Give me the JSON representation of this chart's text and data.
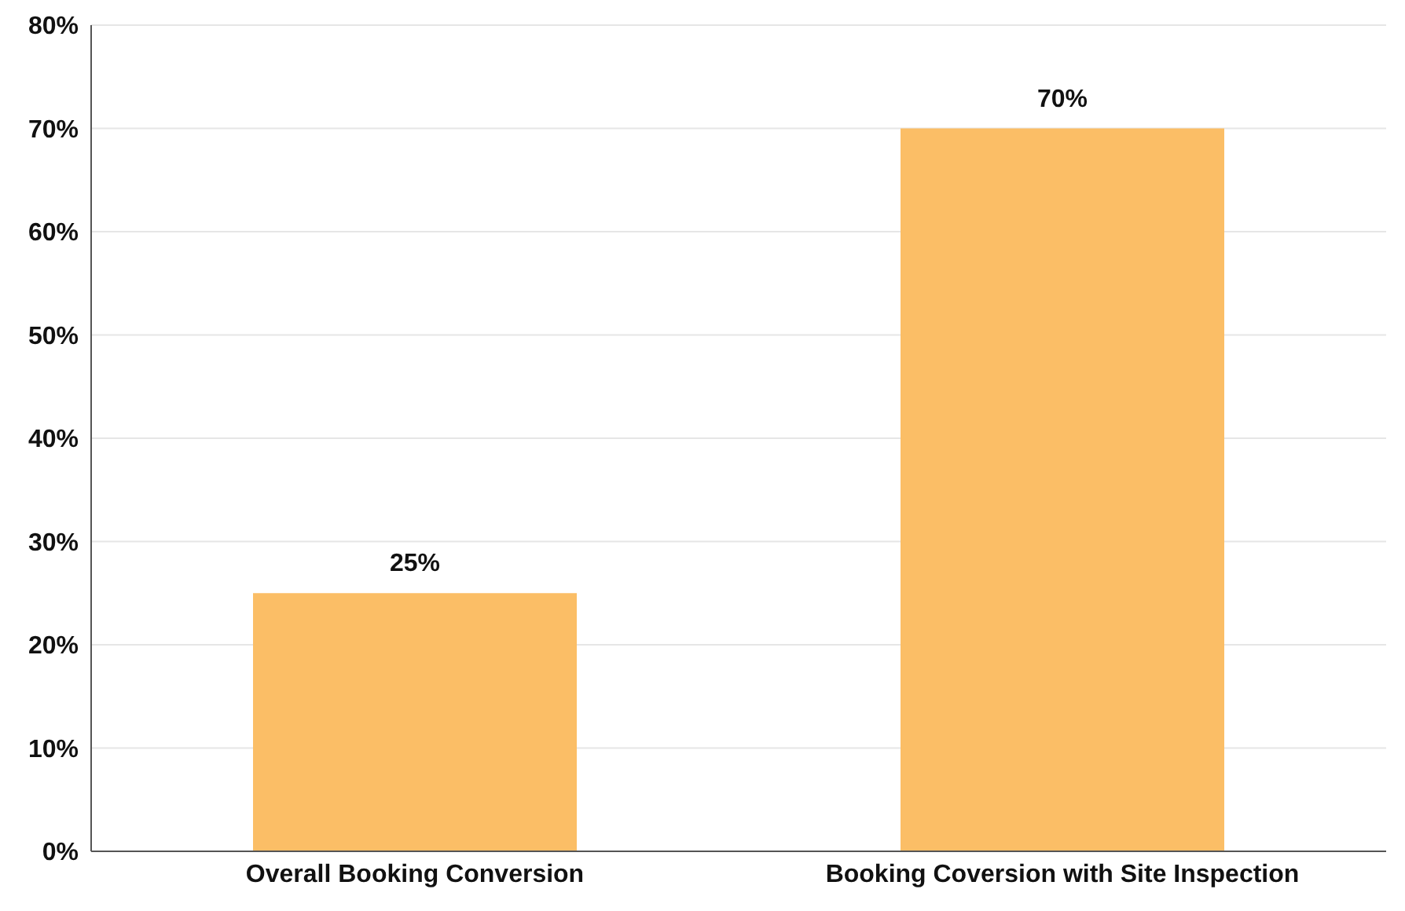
{
  "chart_data": {
    "type": "bar",
    "categories": [
      "Overall Booking Conversion",
      "Booking Coversion with Site Inspection"
    ],
    "values": [
      25,
      70
    ],
    "value_labels": [
      "25%",
      "70%"
    ],
    "color": "#fbbe66",
    "ylim": [
      0,
      80
    ],
    "yticks": [
      {
        "value": 0,
        "label": "0%"
      },
      {
        "value": 10,
        "label": "10%"
      },
      {
        "value": 20,
        "label": "20%"
      },
      {
        "value": 30,
        "label": "30%"
      },
      {
        "value": 40,
        "label": "40%"
      },
      {
        "value": 50,
        "label": "50%"
      },
      {
        "value": 60,
        "label": "60%"
      },
      {
        "value": 70,
        "label": "70%"
      },
      {
        "value": 80,
        "label": "80%"
      }
    ],
    "grid": "y"
  }
}
